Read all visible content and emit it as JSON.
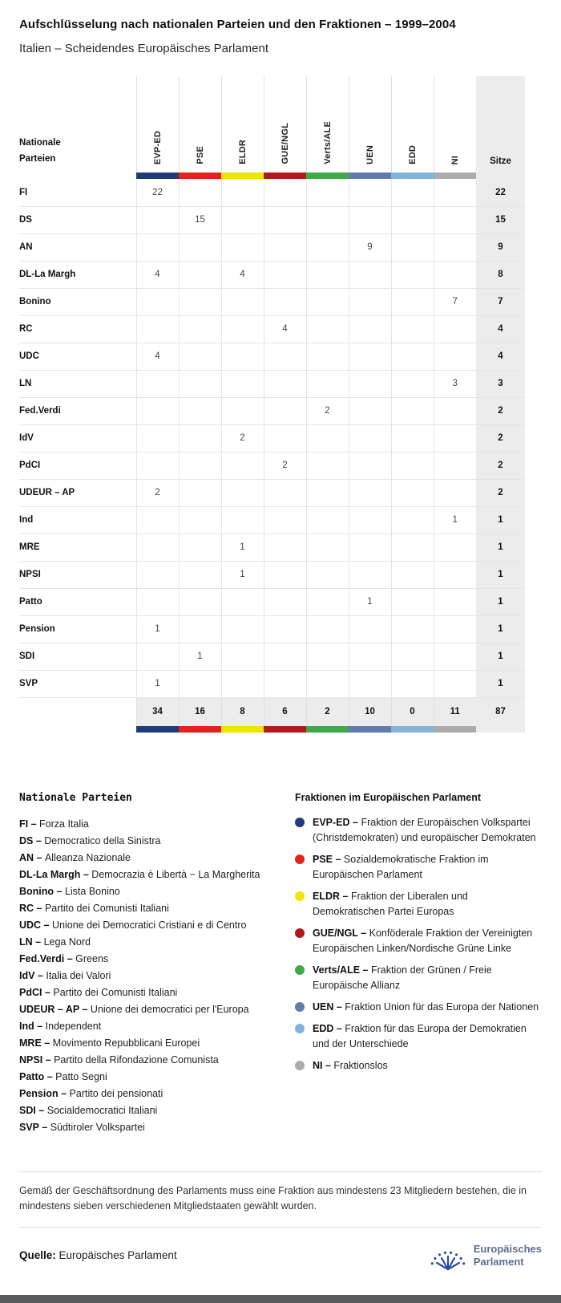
{
  "header": {
    "title": "Aufschlüsselung nach nationalen Parteien und den Fraktionen – 1999–2004",
    "subtitle": "Italien – Scheidendes Europäisches Parlament"
  },
  "chart_data": {
    "type": "table",
    "title": "Aufschlüsselung nach nationalen Parteien und den Fraktionen – 1999–2004",
    "subtitle": "Italien – Scheidendes Europäisches Parlament",
    "row_header_label": "Nationale Parteien",
    "seats_column_label": "Sitze",
    "columns": [
      {
        "label": "EVP-ED",
        "color": "#1f3b7c"
      },
      {
        "label": "PSE",
        "color": "#e2231a"
      },
      {
        "label": "ELDR",
        "color": "#efe600"
      },
      {
        "label": "GUE/NGL",
        "color": "#b3181d"
      },
      {
        "label": "Verts/ALE",
        "color": "#3faa49"
      },
      {
        "label": "UEN",
        "color": "#5f7cac"
      },
      {
        "label": "EDD",
        "color": "#82b4d8"
      },
      {
        "label": "NI",
        "color": "#ababab"
      }
    ],
    "rows": [
      {
        "party": "FI",
        "values": [
          22,
          null,
          null,
          null,
          null,
          null,
          null,
          null
        ],
        "seats": 22
      },
      {
        "party": "DS",
        "values": [
          null,
          15,
          null,
          null,
          null,
          null,
          null,
          null
        ],
        "seats": 15
      },
      {
        "party": "AN",
        "values": [
          null,
          null,
          null,
          null,
          null,
          9,
          null,
          null
        ],
        "seats": 9
      },
      {
        "party": "DL-La Margh",
        "values": [
          4,
          null,
          4,
          null,
          null,
          null,
          null,
          null
        ],
        "seats": 8
      },
      {
        "party": "Bonino",
        "values": [
          null,
          null,
          null,
          null,
          null,
          null,
          null,
          7
        ],
        "seats": 7
      },
      {
        "party": "RC",
        "values": [
          null,
          null,
          null,
          4,
          null,
          null,
          null,
          null
        ],
        "seats": 4
      },
      {
        "party": "UDC",
        "values": [
          4,
          null,
          null,
          null,
          null,
          null,
          null,
          null
        ],
        "seats": 4
      },
      {
        "party": "LN",
        "values": [
          null,
          null,
          null,
          null,
          null,
          null,
          null,
          3
        ],
        "seats": 3
      },
      {
        "party": "Fed.Verdi",
        "values": [
          null,
          null,
          null,
          null,
          2,
          null,
          null,
          null
        ],
        "seats": 2
      },
      {
        "party": "IdV",
        "values": [
          null,
          null,
          2,
          null,
          null,
          null,
          null,
          null
        ],
        "seats": 2
      },
      {
        "party": "PdCI",
        "values": [
          null,
          null,
          null,
          2,
          null,
          null,
          null,
          null
        ],
        "seats": 2
      },
      {
        "party": "UDEUR – AP",
        "values": [
          2,
          null,
          null,
          null,
          null,
          null,
          null,
          null
        ],
        "seats": 2
      },
      {
        "party": "Ind",
        "values": [
          null,
          null,
          null,
          null,
          null,
          null,
          null,
          1
        ],
        "seats": 1
      },
      {
        "party": "MRE",
        "values": [
          null,
          null,
          1,
          null,
          null,
          null,
          null,
          null
        ],
        "seats": 1
      },
      {
        "party": "NPSI",
        "values": [
          null,
          null,
          1,
          null,
          null,
          null,
          null,
          null
        ],
        "seats": 1
      },
      {
        "party": "Patto",
        "values": [
          null,
          null,
          null,
          null,
          null,
          1,
          null,
          null
        ],
        "seats": 1
      },
      {
        "party": "Pension",
        "values": [
          1,
          null,
          null,
          null,
          null,
          null,
          null,
          null
        ],
        "seats": 1
      },
      {
        "party": "SDI",
        "values": [
          null,
          1,
          null,
          null,
          null,
          null,
          null,
          null
        ],
        "seats": 1
      },
      {
        "party": "SVP",
        "values": [
          1,
          null,
          null,
          null,
          null,
          null,
          null,
          null
        ],
        "seats": 1
      }
    ],
    "totals": {
      "values": [
        34,
        16,
        8,
        6,
        2,
        10,
        0,
        11
      ],
      "seats": 87
    }
  },
  "legend_parties": {
    "title": "Nationale Parteien",
    "items": [
      {
        "abbr": "FI",
        "name": "Forza Italia"
      },
      {
        "abbr": "DS",
        "name": "Democratico della Sinistra"
      },
      {
        "abbr": "AN",
        "name": "Alleanza Nazionale"
      },
      {
        "abbr": "DL-La Margh",
        "name": "Democrazia è Libertà − La Margherita"
      },
      {
        "abbr": "Bonino",
        "name": "Lista Bonino"
      },
      {
        "abbr": "RC",
        "name": "Partito dei Comunisti Italiani"
      },
      {
        "abbr": "UDC",
        "name": "Unione dei Democratici Cristiani e di Centro"
      },
      {
        "abbr": "LN",
        "name": "Lega Nord"
      },
      {
        "abbr": "Fed.Verdi",
        "name": "Greens"
      },
      {
        "abbr": "IdV",
        "name": "Italia dei Valori"
      },
      {
        "abbr": "PdCI",
        "name": "Partito dei Comunisti Italiani"
      },
      {
        "abbr": "UDEUR – AP",
        "name": "Unione dei democratici per l'Europa"
      },
      {
        "abbr": "Ind",
        "name": "Independent"
      },
      {
        "abbr": "MRE",
        "name": "Movimento Repubblicani Europei"
      },
      {
        "abbr": "NPSI",
        "name": "Partito della Rifondazione Comunista"
      },
      {
        "abbr": "Patto",
        "name": "Patto Segni"
      },
      {
        "abbr": "Pension",
        "name": "Partito dei pensionati"
      },
      {
        "abbr": "SDI",
        "name": "Socialdemocratici Italiani"
      },
      {
        "abbr": "SVP",
        "name": "Südtiroler Volkspartei"
      }
    ]
  },
  "legend_groups": {
    "title": "Fraktionen im Europäischen Parlament",
    "items": [
      {
        "abbr": "EVP-ED",
        "name": "Fraktion der Europäischen Volkspartei (Christdemokraten) und europäischer Demokraten"
      },
      {
        "abbr": "PSE",
        "name": "Sozialdemokratische Fraktion im Europäischen Parlament"
      },
      {
        "abbr": "ELDR",
        "name": "Fraktion der Liberalen und Demokratischen Partei Europas"
      },
      {
        "abbr": "GUE/NGL",
        "name": "Konföderale Fraktion der Vereinigten Europäischen Linken/Nordische Grüne Linke"
      },
      {
        "abbr": "Verts/ALE",
        "name": "Fraktion der Grünen / Freie Europäische Allianz"
      },
      {
        "abbr": "UEN",
        "name": "Fraktion Union für das Europa der Nationen"
      },
      {
        "abbr": "EDD",
        "name": "Fraktion für das Europa der Demokratien und der Unterschiede"
      },
      {
        "abbr": "NI",
        "name": "Fraktionslos"
      }
    ]
  },
  "footer": {
    "note": "Gemäß der Geschäftsordnung des Parlaments muss eine Fraktion aus mindestens 23 Mitgliedern bestehen, die in mindestens sieben verschiedenen Mitgliedstaaten gewählt wurden.",
    "source_label": "Quelle:",
    "source_name": "Europäisches Parlament",
    "logo_line1": "Europäisches",
    "logo_line2": "Parlament"
  }
}
